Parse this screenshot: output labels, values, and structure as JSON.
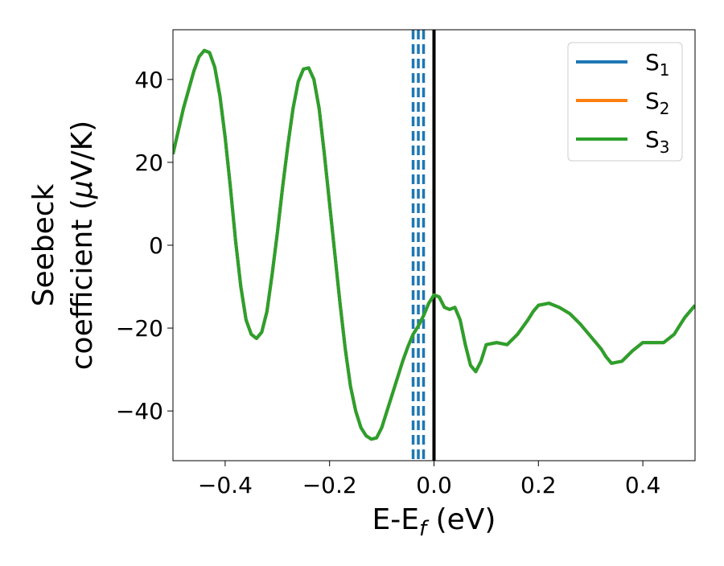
{
  "chart_data": {
    "type": "line",
    "xlabel": "E-E",
    "xlabel_sub": "f",
    "xlabel_unit": " (eV)",
    "ylabel_line1": "Seebeck",
    "ylabel_line2_pre": "coefficient  (",
    "ylabel_mu": "μ",
    "ylabel_line2_post": "V/K)",
    "xlim": [
      -0.5,
      0.5
    ],
    "ylim": [
      -52,
      52
    ],
    "xticks": [
      -0.4,
      -0.2,
      0.0,
      0.2,
      0.4
    ],
    "xtick_labels": [
      "−0.4",
      "−0.2",
      "0.0",
      "0.2",
      "0.4"
    ],
    "yticks": [
      40,
      20,
      0,
      -20,
      -40
    ],
    "ytick_labels": [
      "40",
      "20",
      "0",
      "−20",
      "−40"
    ],
    "legend_position": "top-right",
    "grid": false,
    "fermi_line": {
      "x": 0.0,
      "color": "#000000"
    },
    "dashed_lines": {
      "x": [
        -0.04,
        -0.03,
        -0.02
      ],
      "color": "#1f77b4"
    },
    "series": [
      {
        "name": "S",
        "sub": "1",
        "color": "#1f77b4",
        "ref": "S3"
      },
      {
        "name": "S",
        "sub": "2",
        "color": "#ff7f0e",
        "ref": "S3"
      },
      {
        "name": "S",
        "sub": "3",
        "color": "#2ca02c",
        "x": [
          -0.5,
          -0.48,
          -0.46,
          -0.45,
          -0.44,
          -0.43,
          -0.42,
          -0.41,
          -0.4,
          -0.39,
          -0.38,
          -0.37,
          -0.36,
          -0.35,
          -0.34,
          -0.33,
          -0.32,
          -0.31,
          -0.3,
          -0.29,
          -0.28,
          -0.27,
          -0.26,
          -0.25,
          -0.24,
          -0.23,
          -0.22,
          -0.21,
          -0.2,
          -0.19,
          -0.18,
          -0.17,
          -0.16,
          -0.15,
          -0.14,
          -0.13,
          -0.12,
          -0.11,
          -0.1,
          -0.09,
          -0.08,
          -0.07,
          -0.06,
          -0.05,
          -0.04,
          -0.03,
          -0.02,
          -0.01,
          0.0,
          0.01,
          0.02,
          0.03,
          0.04,
          0.05,
          0.06,
          0.07,
          0.08,
          0.09,
          0.1,
          0.12,
          0.14,
          0.16,
          0.18,
          0.19,
          0.2,
          0.22,
          0.24,
          0.26,
          0.28,
          0.3,
          0.32,
          0.33,
          0.34,
          0.36,
          0.38,
          0.4,
          0.42,
          0.44,
          0.46,
          0.48,
          0.5
        ],
        "y": [
          22,
          33,
          42,
          45.5,
          47,
          46.5,
          43,
          36,
          26,
          14,
          1,
          -10,
          -18,
          -21.5,
          -22.5,
          -21,
          -16,
          -7,
          3,
          14,
          24,
          33,
          39.5,
          42.5,
          42.8,
          40,
          33,
          22,
          10,
          -2,
          -14,
          -25,
          -34,
          -40,
          -44,
          -46,
          -46.8,
          -46.5,
          -44,
          -40,
          -36,
          -32,
          -28,
          -24.5,
          -21.5,
          -19.5,
          -17,
          -14,
          -12,
          -12.5,
          -15,
          -15.5,
          -15,
          -18,
          -24,
          -29,
          -30.5,
          -28,
          -24,
          -23.5,
          -24,
          -21.5,
          -18,
          -16,
          -14.5,
          -14,
          -15,
          -16.5,
          -19,
          -22,
          -25,
          -27,
          -28.5,
          -28,
          -25.5,
          -23.5,
          -23.5,
          -23.5,
          -21.5,
          -17.5,
          -14.5
        ]
      }
    ]
  }
}
